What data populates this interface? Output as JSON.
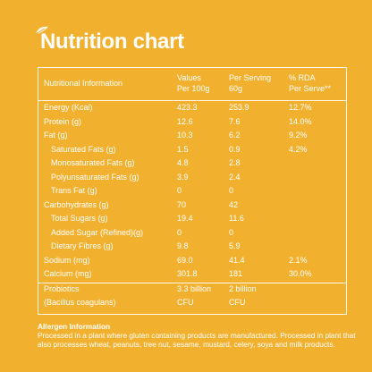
{
  "header": {
    "title": "Nutrition chart"
  },
  "table": {
    "header": [
      [
        "Nutritional Information"
      ],
      [
        "Values",
        "Per 100g"
      ],
      [
        "Per Serving",
        "60g"
      ],
      [
        "% RDA",
        "Per Serve**"
      ]
    ],
    "rows": [
      [
        "Energy (Kcal)",
        "423.3",
        "253.9",
        "12.7%"
      ],
      [
        "Protein (g)",
        "12.6",
        "7.6",
        "14.0%"
      ],
      [
        "Fat (g)",
        "10.3",
        "6.2",
        "9.2%"
      ],
      [
        "Saturated Fats (g)",
        "1.5",
        "0.9",
        "4.2%"
      ],
      [
        "Monosaturated Fats (g)",
        "4.8",
        "2.8"
      ],
      [
        "Polyunsaturated Fats (g)",
        "3.9",
        "2.4"
      ],
      [
        "Trans Fat (g)",
        "0",
        "0"
      ],
      [
        "Carbohydrates (g)",
        "70",
        "42"
      ],
      [
        "Total Sugars (g)",
        "19.4",
        "11.6"
      ],
      [
        "Added Sugar (Refined)(g)",
        "0",
        "0"
      ],
      [
        "Dietary Fibres (g)",
        "9.8",
        "5.9"
      ],
      [
        "Sodium (mg)",
        "69.0",
        "41.4",
        "2.1%"
      ],
      [
        "Calcium (mg)",
        "301.8",
        "181",
        "30.0%"
      ],
      [
        "Probiotics",
        "3.3 billion",
        "2 billion"
      ],
      [
        "(Bacillus coagulans)",
        "CFU",
        "CFU"
      ]
    ]
  },
  "allergen": {
    "title": "Allergen Information",
    "text": "Processed in a plant where gluten containing products are manufactured. Processed in plant that also processes wheat, peanuts, tree nut, sesame, mustard, celery, soya and milk products."
  }
}
